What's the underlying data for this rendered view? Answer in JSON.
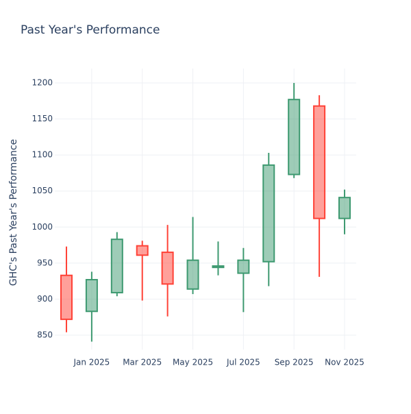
{
  "chart_data": {
    "type": "candlestick",
    "title": "Past Year's Performance",
    "y_label": "GHC's Past Year's Performance",
    "x": [
      "2024-12",
      "2025-01",
      "2025-02",
      "2025-03",
      "2025-04",
      "2025-05",
      "2025-06",
      "2025-07",
      "2025-08",
      "2025-09",
      "2025-10",
      "2025-11"
    ],
    "open": [
      933,
      883,
      909,
      974,
      965,
      914,
      944,
      936,
      952,
      1073,
      1168,
      1012
    ],
    "high": [
      973,
      938,
      993,
      981,
      1003,
      1014,
      980,
      971,
      1103,
      1200,
      1183,
      1052
    ],
    "low": [
      854,
      841,
      904,
      898,
      876,
      907,
      933,
      882,
      918,
      1068,
      931,
      990
    ],
    "close": [
      872,
      927,
      983,
      961,
      921,
      954,
      946,
      954,
      1086,
      1177,
      1012,
      1041
    ],
    "increasing_color": "#3d9970",
    "decreasing_color": "#ff4136",
    "ylim": [
      830,
      1220
    ],
    "yticks": [
      850,
      900,
      950,
      1000,
      1050,
      1100,
      1150,
      1200
    ],
    "xticks": [
      {
        "value": "2025-01",
        "label": "Jan 2025"
      },
      {
        "value": "2025-03",
        "label": "Mar 2025"
      },
      {
        "value": "2025-05",
        "label": "May 2025"
      },
      {
        "value": "2025-07",
        "label": "Jul 2025"
      },
      {
        "value": "2025-09",
        "label": "Sep 2025"
      },
      {
        "value": "2025-11",
        "label": "Nov 2025"
      }
    ],
    "grid": true
  }
}
